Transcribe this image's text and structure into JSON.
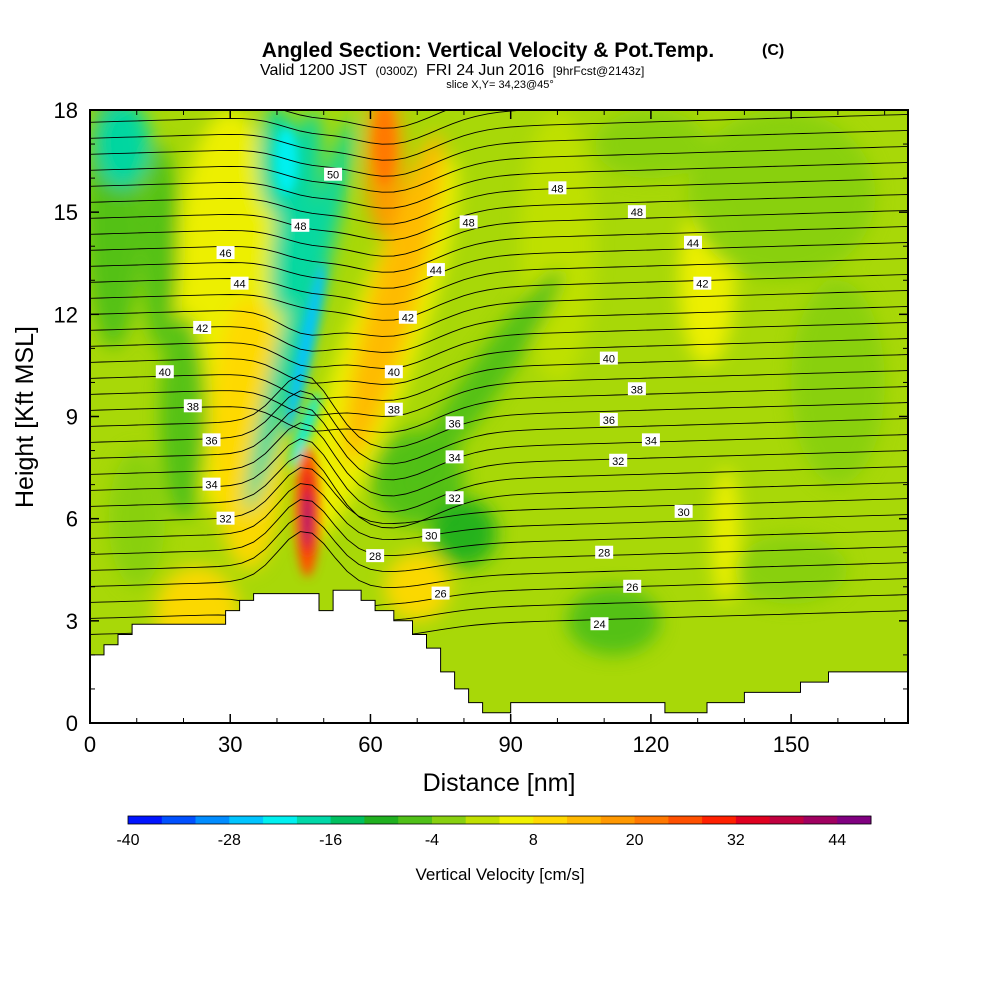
{
  "header": {
    "title_main": "Angled Section: Vertical Velocity & Pot.Temp.",
    "title_suffix": "(C)",
    "valid_a": "Valid 1200 JST",
    "valid_b": "(0300Z)",
    "valid_c": "FRI 24 Jun 2016",
    "valid_d": "[9hrFcst@2143z]",
    "slice": "slice X,Y= 34,23@45°"
  },
  "chart_data": {
    "type": "heatmap",
    "xlabel": "Distance [nm]",
    "ylabel": "Height [Kft MSL]",
    "xlim": [
      0,
      175
    ],
    "ylim": [
      0,
      18
    ],
    "x_ticks": [
      "0",
      "30",
      "60",
      "90",
      "120",
      "150"
    ],
    "y_ticks": [
      "0",
      "3",
      "6",
      "9",
      "12",
      "15",
      "18"
    ],
    "x_tick_values": [
      0,
      30,
      60,
      90,
      120,
      150
    ],
    "y_tick_values": [
      0,
      3,
      6,
      9,
      12,
      15,
      18
    ],
    "colorbar": {
      "label": "Vertical Velocity [cm/s]",
      "min": -40,
      "max": 48,
      "step": 4,
      "tick_labels": [
        "-40",
        "-28",
        "-16",
        "-4",
        "8",
        "20",
        "32",
        "44"
      ],
      "tick_values": [
        -40,
        -28,
        -16,
        -4,
        8,
        20,
        32,
        44
      ],
      "colors": [
        "#0014ff",
        "#0050ff",
        "#008cff",
        "#00c4ff",
        "#00f0f0",
        "#00d8a8",
        "#00c060",
        "#20b020",
        "#50c018",
        "#88d010",
        "#c0e000",
        "#f0f000",
        "#ffd800",
        "#ffb800",
        "#ff9800",
        "#ff7800",
        "#ff5000",
        "#ff2000",
        "#e00020",
        "#c00040",
        "#a00060",
        "#800080"
      ]
    },
    "isentrope_labels": [
      {
        "text": "50",
        "x": 52,
        "y": 16.1
      },
      {
        "text": "48",
        "x": 45,
        "y": 14.6
      },
      {
        "text": "48",
        "x": 81,
        "y": 14.7
      },
      {
        "text": "48",
        "x": 100,
        "y": 15.7
      },
      {
        "text": "48",
        "x": 117,
        "y": 15.0
      },
      {
        "text": "46",
        "x": 29,
        "y": 13.8
      },
      {
        "text": "44",
        "x": 32,
        "y": 12.9
      },
      {
        "text": "44",
        "x": 74,
        "y": 13.3
      },
      {
        "text": "44",
        "x": 129,
        "y": 14.1
      },
      {
        "text": "42",
        "x": 24,
        "y": 11.6
      },
      {
        "text": "42",
        "x": 68,
        "y": 11.9
      },
      {
        "text": "42",
        "x": 131,
        "y": 12.9
      },
      {
        "text": "40",
        "x": 16,
        "y": 10.3
      },
      {
        "text": "40",
        "x": 65,
        "y": 10.3
      },
      {
        "text": "40",
        "x": 111,
        "y": 10.7
      },
      {
        "text": "38",
        "x": 22,
        "y": 9.3
      },
      {
        "text": "38",
        "x": 65,
        "y": 9.2
      },
      {
        "text": "38",
        "x": 117,
        "y": 9.8
      },
      {
        "text": "36",
        "x": 26,
        "y": 8.3
      },
      {
        "text": "36",
        "x": 78,
        "y": 8.8
      },
      {
        "text": "36",
        "x": 111,
        "y": 8.9
      },
      {
        "text": "34",
        "x": 26,
        "y": 7.0
      },
      {
        "text": "34",
        "x": 78,
        "y": 7.8
      },
      {
        "text": "34",
        "x": 120,
        "y": 8.3
      },
      {
        "text": "32",
        "x": 29,
        "y": 6.0
      },
      {
        "text": "32",
        "x": 78,
        "y": 6.6
      },
      {
        "text": "32",
        "x": 113,
        "y": 7.7
      },
      {
        "text": "30",
        "x": 73,
        "y": 5.5
      },
      {
        "text": "30",
        "x": 127,
        "y": 6.2
      },
      {
        "text": "28",
        "x": 61,
        "y": 4.9
      },
      {
        "text": "28",
        "x": 110,
        "y": 5.0
      },
      {
        "text": "26",
        "x": 75,
        "y": 3.8
      },
      {
        "text": "26",
        "x": 116,
        "y": 4.0
      },
      {
        "text": "24",
        "x": 109,
        "y": 2.9
      }
    ],
    "terrain": [
      [
        0,
        2.0
      ],
      [
        3,
        2.0
      ],
      [
        3,
        2.3
      ],
      [
        6,
        2.3
      ],
      [
        6,
        2.6
      ],
      [
        9,
        2.6
      ],
      [
        9,
        2.9
      ],
      [
        29,
        2.9
      ],
      [
        29,
        3.3
      ],
      [
        32,
        3.3
      ],
      [
        32,
        3.6
      ],
      [
        35,
        3.6
      ],
      [
        35,
        3.8
      ],
      [
        49,
        3.8
      ],
      [
        49,
        3.3
      ],
      [
        52,
        3.3
      ],
      [
        52,
        3.9
      ],
      [
        58,
        3.9
      ],
      [
        58,
        3.6
      ],
      [
        61,
        3.6
      ],
      [
        61,
        3.3
      ],
      [
        65,
        3.3
      ],
      [
        65,
        3.0
      ],
      [
        69,
        3.0
      ],
      [
        69,
        2.6
      ],
      [
        72,
        2.6
      ],
      [
        72,
        2.2
      ],
      [
        75,
        2.2
      ],
      [
        75,
        1.5
      ],
      [
        78,
        1.5
      ],
      [
        78,
        1.0
      ],
      [
        81,
        1.0
      ],
      [
        81,
        0.6
      ],
      [
        84,
        0.6
      ],
      [
        84,
        0.3
      ],
      [
        90,
        0.3
      ],
      [
        90,
        0.6
      ],
      [
        123,
        0.6
      ],
      [
        123,
        0.3
      ],
      [
        132,
        0.3
      ],
      [
        132,
        0.6
      ],
      [
        140,
        0.6
      ],
      [
        140,
        0.9
      ],
      [
        152,
        0.9
      ],
      [
        152,
        1.2
      ],
      [
        158,
        1.2
      ],
      [
        158,
        1.5
      ],
      [
        175,
        1.5
      ],
      [
        175,
        0
      ],
      [
        0,
        0
      ]
    ]
  }
}
